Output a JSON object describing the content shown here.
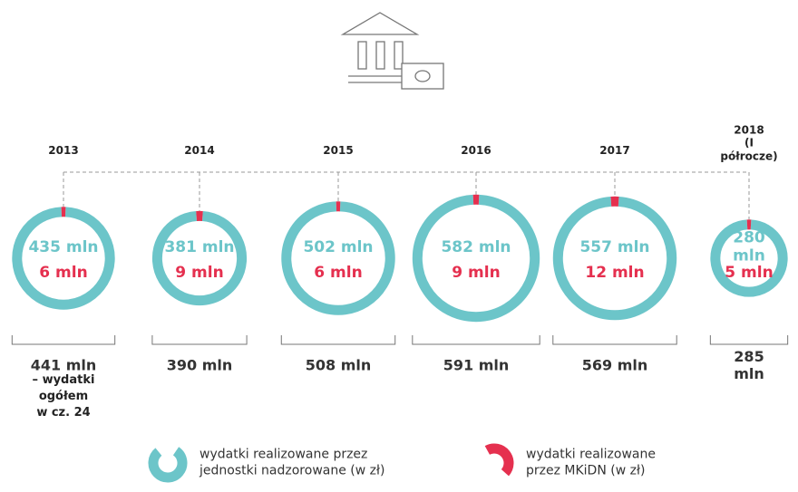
{
  "chart_data": {
    "type": "donut",
    "categories": [
      "2013",
      "2014",
      "2015",
      "2016",
      "2017",
      "2018\n(I półrocze)"
    ],
    "series": [
      {
        "name": "wydatki realizowane przez\njednostki nadzorowane (w zł)",
        "color": "#6cc5c9",
        "values": [
          435,
          381,
          502,
          582,
          557,
          280
        ],
        "value_labels": [
          "435 mln",
          "381 mln",
          "502 mln",
          "582 mln",
          "557 mln",
          "280 mln"
        ]
      },
      {
        "name": "wydatki realizowane\nprzez MKiDN (w zł)",
        "color": "#e5304f",
        "values": [
          6,
          9,
          6,
          9,
          12,
          5
        ],
        "value_labels": [
          "6 mln",
          "9 mln",
          "6 mln",
          "9 mln",
          "12 mln",
          "5 mln"
        ]
      }
    ],
    "totals": [
      441,
      390,
      508,
      591,
      569,
      285
    ],
    "totals_labels": [
      "441 mln",
      "390 mln",
      "508 mln",
      "591 mln",
      "569 mln",
      "285 mln"
    ],
    "annotation": "– wydatki\nogółem\nw cz. 24"
  }
}
